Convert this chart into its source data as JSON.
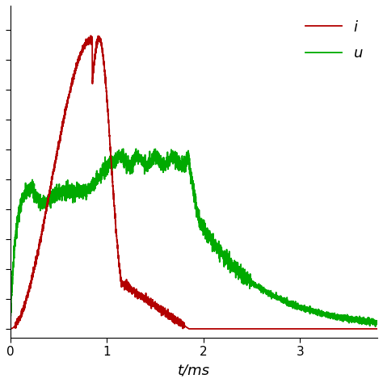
{
  "title": "",
  "xlabel": "t/ms",
  "ylabel": "",
  "xlim": [
    0,
    3.8
  ],
  "ylim": [
    -0.03,
    1.08
  ],
  "current_color": "#b30000",
  "voltage_color": "#00aa00",
  "background_color": "#ffffff",
  "legend_i": "i",
  "legend_u": "u",
  "xlabel_fontsize": 13,
  "legend_fontsize": 13
}
